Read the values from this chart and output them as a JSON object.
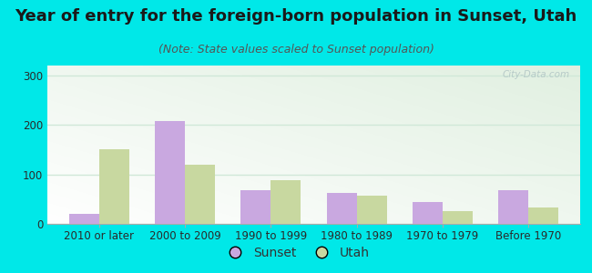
{
  "title": "Year of entry for the foreign-born population in Sunset, Utah",
  "subtitle": "(Note: State values scaled to Sunset population)",
  "categories": [
    "2010 or later",
    "2000 to 2009",
    "1990 to 1999",
    "1980 to 1989",
    "1970 to 1979",
    "Before 1970"
  ],
  "sunset_values": [
    20,
    208,
    68,
    62,
    45,
    68
  ],
  "utah_values": [
    150,
    120,
    88,
    57,
    25,
    33
  ],
  "sunset_color": "#c9a8e0",
  "utah_color": "#c8d8a0",
  "background_outer": "#00e8e8",
  "ylim": [
    0,
    320
  ],
  "yticks": [
    0,
    100,
    200,
    300
  ],
  "bar_width": 0.35,
  "title_fontsize": 13,
  "subtitle_fontsize": 9,
  "tick_fontsize": 8.5,
  "legend_fontsize": 10,
  "watermark_text": "City-Data.com",
  "watermark_color": "#b0c4c4",
  "grid_color": "#d0e8d8",
  "spine_color": "#aaaaaa"
}
